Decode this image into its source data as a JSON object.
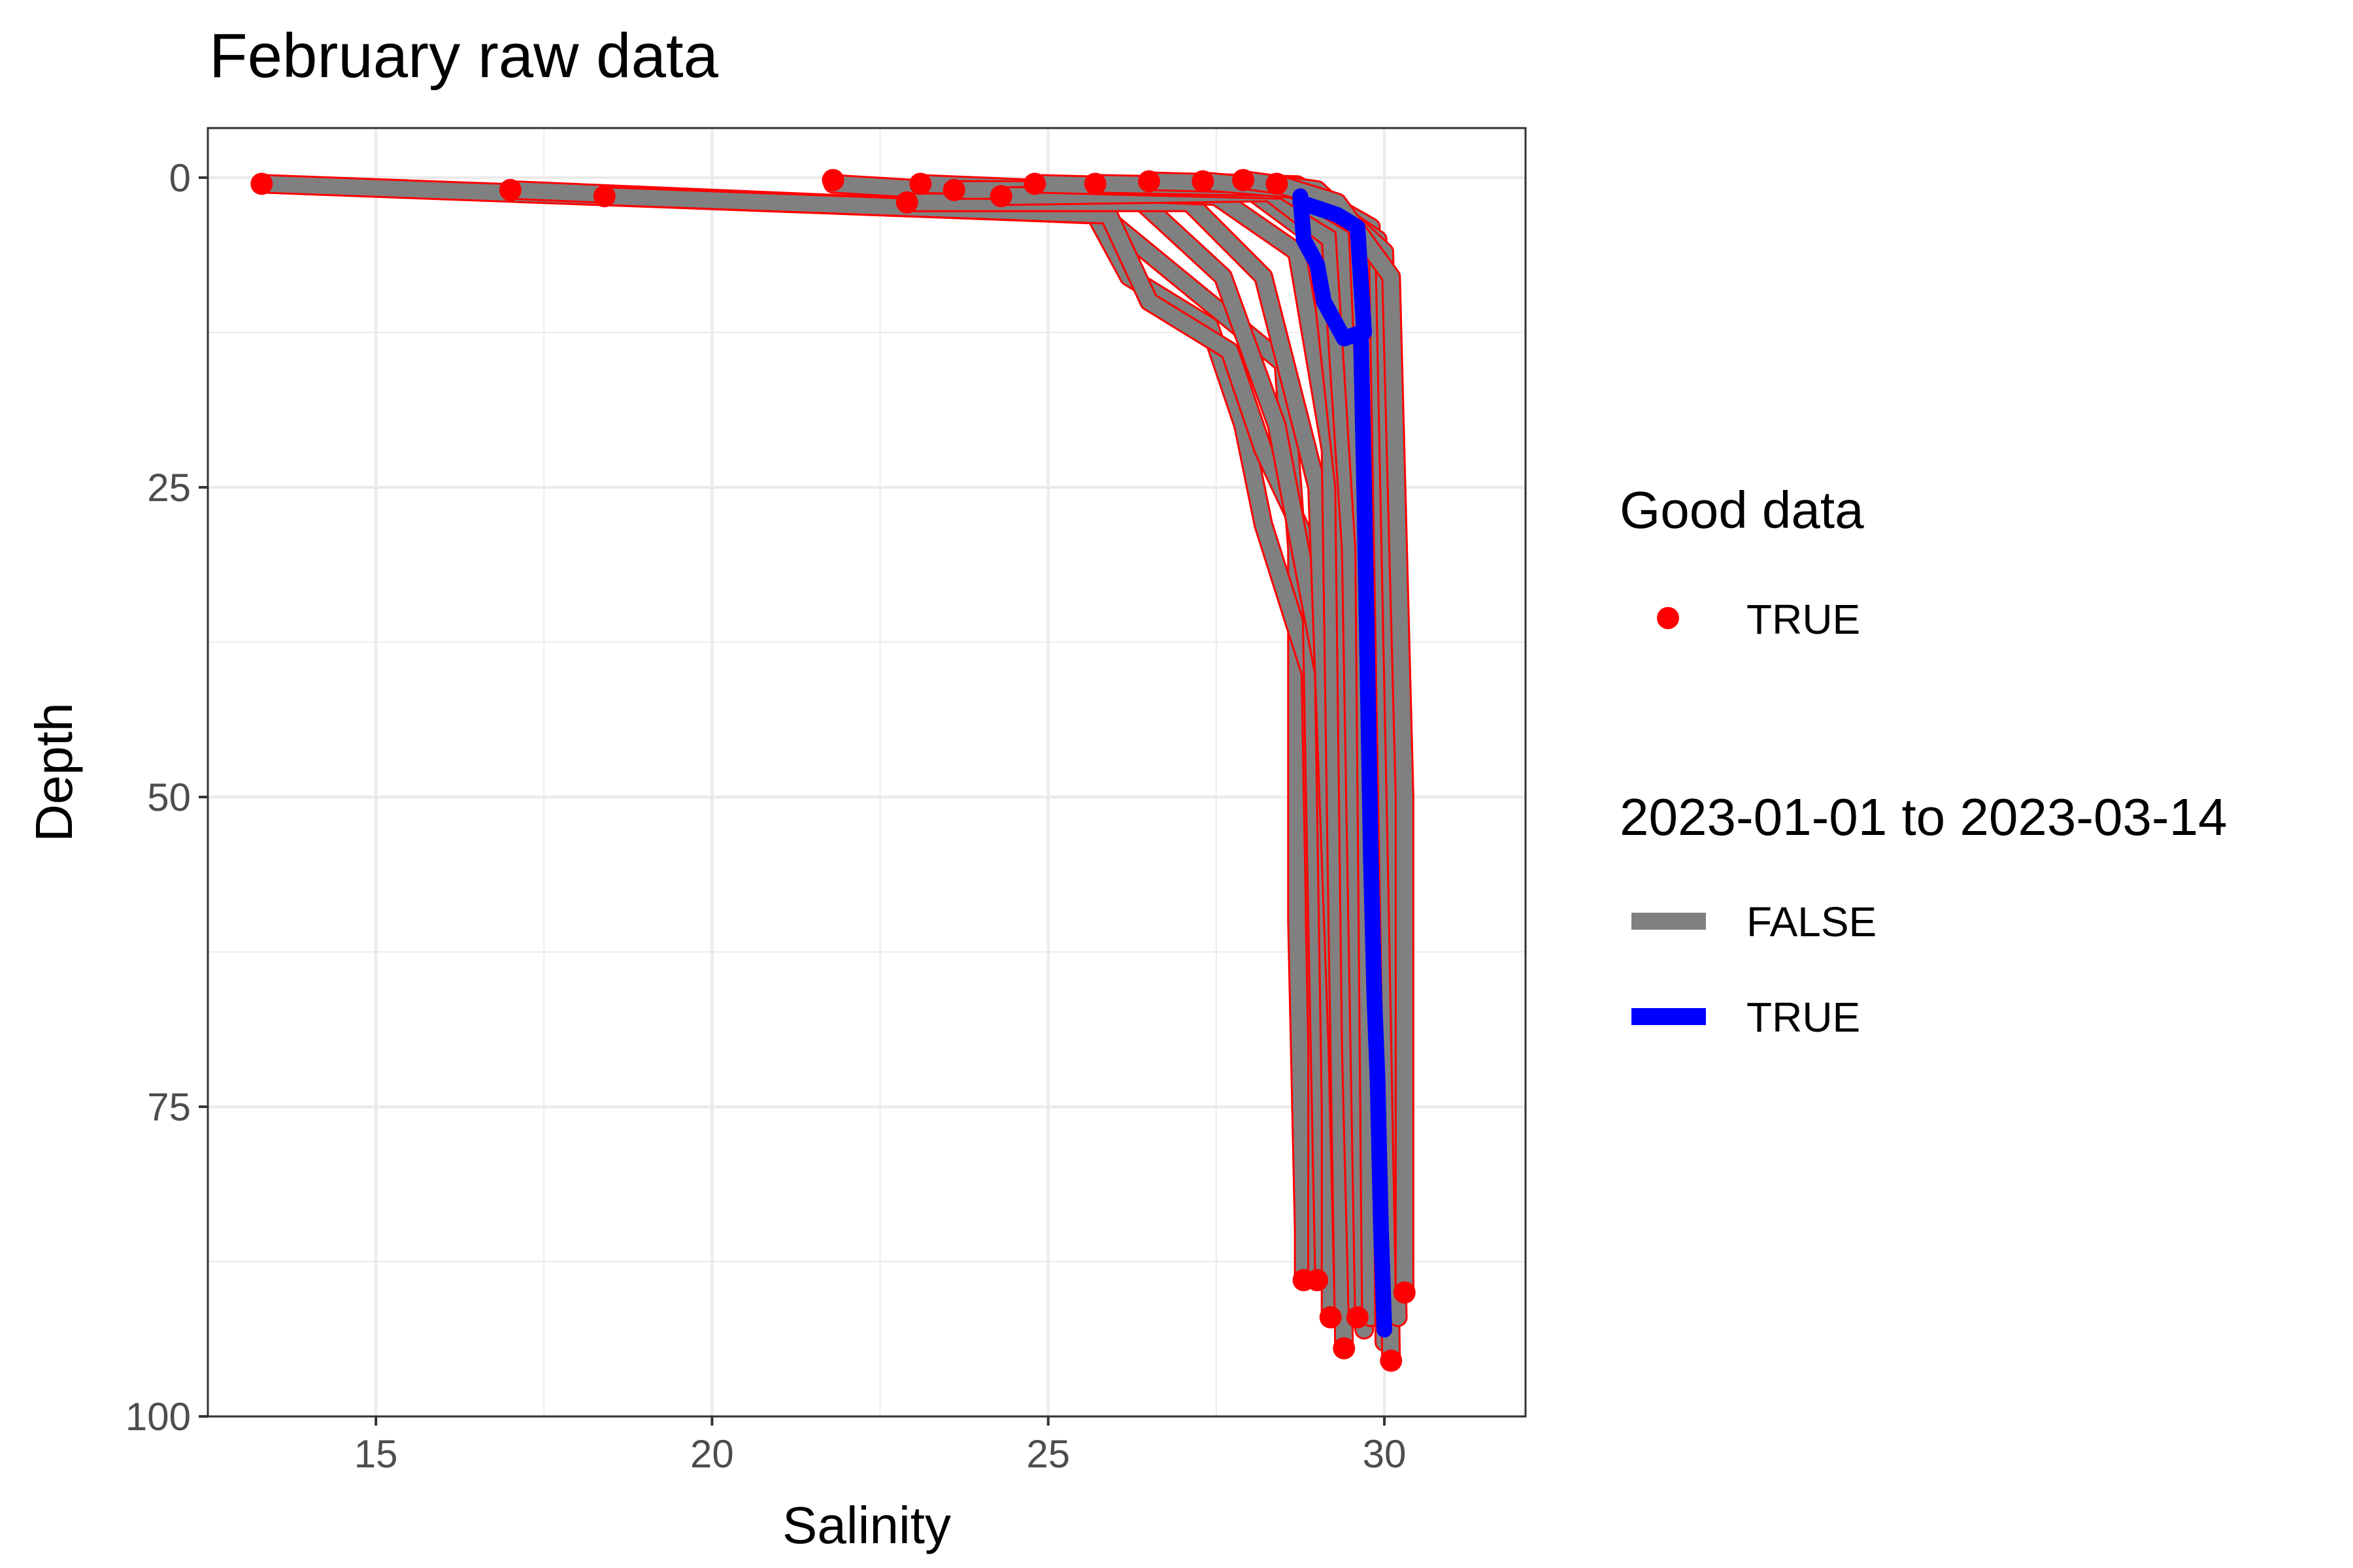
{
  "chart_data": {
    "type": "line",
    "title": "February raw data",
    "xlabel": "Salinity",
    "ylabel": "Depth",
    "xlim": [
      12.5,
      32.1
    ],
    "ylim": [
      100,
      -4
    ],
    "y_reversed": true,
    "x_ticks": [
      15,
      20,
      25,
      30
    ],
    "y_ticks": [
      0,
      25,
      50,
      75,
      100
    ],
    "grid": true,
    "legend_position": "right",
    "legends": [
      {
        "title": "Good data",
        "entries": [
          {
            "label": "TRUE",
            "kind": "point",
            "color": "#ff0000"
          }
        ]
      },
      {
        "title": "2023-01-01 to 2023-03-14",
        "entries": [
          {
            "label": "FALSE",
            "kind": "line",
            "color": "#808080"
          },
          {
            "label": "TRUE",
            "kind": "line",
            "color": "#0000ff"
          }
        ]
      }
    ],
    "colors": {
      "good_point": "#ff0000",
      "false_line": "#808080",
      "true_line": "#0000ff",
      "panel_border": "#333333",
      "grid": "#ebebeb"
    },
    "series": [
      {
        "in_range": false,
        "x": [
          13.3,
          25.8,
          28.5,
          28.7,
          28.7,
          28.8,
          28.8
        ],
        "y": [
          0.5,
          3,
          15,
          30,
          60,
          85,
          89
        ]
      },
      {
        "in_range": false,
        "x": [
          17.0,
          25.7,
          26.2,
          27.4,
          27.9,
          28.2,
          28.9,
          29.0,
          29.0
        ],
        "y": [
          1,
          3,
          8,
          12,
          20,
          28,
          40,
          70,
          89
        ]
      },
      {
        "in_range": false,
        "x": [
          18.4,
          25.9,
          26.5,
          27.7,
          28.2,
          28.9,
          29.0,
          29.1
        ],
        "y": [
          1.5,
          3,
          10,
          14,
          22,
          30,
          60,
          88
        ]
      },
      {
        "in_range": false,
        "x": [
          21.8,
          26.4,
          27.6,
          28.4,
          29.1,
          29.2,
          29.2
        ],
        "y": [
          0.5,
          2,
          8,
          20,
          40,
          75,
          92
        ]
      },
      {
        "in_range": false,
        "x": [
          22.9,
          27.1,
          28.2,
          29.0,
          29.3,
          29.4
        ],
        "y": [
          2,
          2,
          8,
          25,
          70,
          93
        ]
      },
      {
        "in_range": false,
        "x": [
          23.1,
          27.5,
          28.7,
          29.2,
          29.3,
          29.4
        ],
        "y": [
          0.5,
          1.5,
          6,
          22,
          60,
          94.5
        ]
      },
      {
        "in_range": false,
        "x": [
          23.6,
          28.0,
          29.0,
          29.4,
          29.5,
          29.6
        ],
        "y": [
          1,
          1,
          5,
          25,
          70,
          92
        ]
      },
      {
        "in_range": false,
        "x": [
          24.3,
          28.3,
          29.2,
          29.5,
          29.7
        ],
        "y": [
          1.5,
          1.2,
          5,
          30,
          93
        ]
      },
      {
        "in_range": false,
        "x": [
          24.8,
          28.5,
          29.4,
          29.7,
          29.8
        ],
        "y": [
          0.5,
          1,
          4,
          30,
          92
        ]
      },
      {
        "in_range": false,
        "x": [
          25.7,
          28.6,
          29.6,
          29.9,
          30.0
        ],
        "y": [
          0.5,
          0.8,
          4,
          40,
          94
        ]
      },
      {
        "in_range": false,
        "x": [
          26.5,
          28.7,
          29.8,
          30.0,
          30.1
        ],
        "y": [
          0.3,
          0.6,
          4,
          60,
          95.5
        ]
      },
      {
        "in_range": false,
        "x": [
          27.3,
          28.8,
          29.9,
          30.1,
          30.2
        ],
        "y": [
          0.3,
          1,
          5,
          70,
          92
        ]
      },
      {
        "in_range": false,
        "x": [
          27.9,
          29.0,
          30.0,
          30.2,
          30.3
        ],
        "y": [
          0.2,
          1,
          6,
          60,
          90
        ]
      },
      {
        "in_range": false,
        "x": [
          28.4,
          29.3,
          30.1,
          30.3,
          30.3
        ],
        "y": [
          0.5,
          2,
          8,
          50,
          90
        ]
      },
      {
        "in_range": true,
        "x": [
          28.75,
          28.8,
          29.0,
          29.1,
          29.3,
          29.4,
          29.65,
          29.7,
          29.75,
          29.8,
          29.85,
          29.9,
          29.95,
          30.0
        ],
        "y": [
          1.5,
          5,
          7,
          10,
          12,
          13,
          12.5,
          25,
          40,
          55,
          66,
          73,
          85,
          93
        ]
      },
      {
        "in_range": true,
        "x": [
          28.75,
          29.3,
          29.6,
          29.7
        ],
        "y": [
          2,
          3,
          4,
          12.5
        ]
      }
    ],
    "good_points": [
      {
        "x": 13.3,
        "y": 0.5
      },
      {
        "x": 17.0,
        "y": 1
      },
      {
        "x": 18.4,
        "y": 1.5
      },
      {
        "x": 21.8,
        "y": 0.2
      },
      {
        "x": 22.9,
        "y": 2
      },
      {
        "x": 23.1,
        "y": 0.5
      },
      {
        "x": 23.6,
        "y": 1
      },
      {
        "x": 24.3,
        "y": 1.5
      },
      {
        "x": 24.8,
        "y": 0.5
      },
      {
        "x": 25.7,
        "y": 0.5
      },
      {
        "x": 26.5,
        "y": 0.3
      },
      {
        "x": 27.3,
        "y": 0.3
      },
      {
        "x": 27.9,
        "y": 0.2
      },
      {
        "x": 28.4,
        "y": 0.5
      },
      {
        "x": 28.8,
        "y": 89
      },
      {
        "x": 29.0,
        "y": 89
      },
      {
        "x": 29.2,
        "y": 92
      },
      {
        "x": 29.4,
        "y": 94.5
      },
      {
        "x": 29.6,
        "y": 92
      },
      {
        "x": 30.1,
        "y": 95.5
      },
      {
        "x": 30.3,
        "y": 90
      }
    ]
  }
}
